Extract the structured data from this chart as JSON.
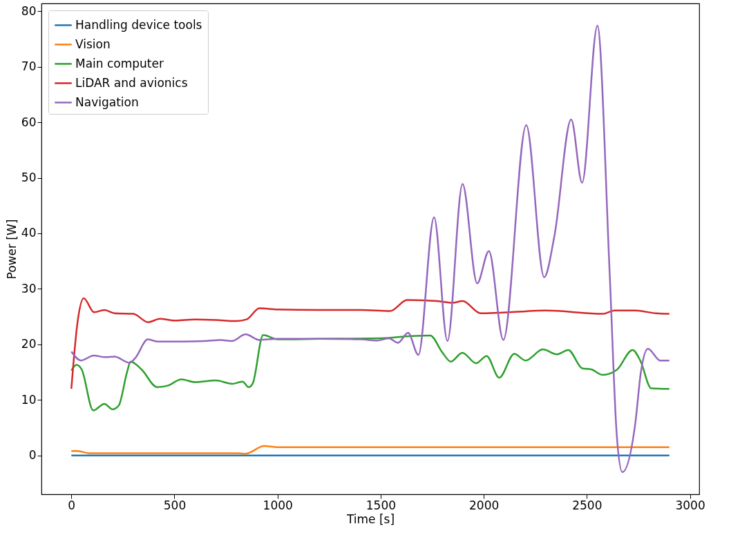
{
  "chart_data": {
    "type": "line",
    "xlabel": "Time [s]",
    "ylabel": "Power [W]",
    "xlim": [
      -145,
      3045
    ],
    "ylim": [
      -7.0,
      81.4
    ],
    "xticks": [
      0,
      500,
      1000,
      1500,
      2000,
      2500,
      3000
    ],
    "yticks": [
      0,
      10,
      20,
      30,
      40,
      50,
      60,
      70,
      80
    ],
    "grid": false,
    "legend": "top left",
    "marker": "none",
    "line_style": "solid",
    "series": [
      {
        "name": "Handling device tools",
        "color": "#1f77b4",
        "x": [
          0,
          2900
        ],
        "values": [
          0,
          0
        ]
      },
      {
        "name": "Vision",
        "color": "#ff7f0e",
        "x": [
          0,
          30,
          87,
          400,
          811,
          845,
          935,
          992,
          1500,
          2000,
          2500,
          2900
        ],
        "values": [
          0.8,
          0.8,
          0.4,
          0.4,
          0.4,
          0.3,
          1.7,
          1.5,
          1.5,
          1.5,
          1.5,
          1.5
        ]
      },
      {
        "name": "Main computer",
        "color": "#2ca02c",
        "x": [
          0,
          25,
          50,
          106,
          160,
          200,
          230,
          270,
          287,
          340,
          416,
          470,
          533,
          600,
          700,
          780,
          830,
          860,
          880,
          930,
          1000,
          1200,
          1500,
          1650,
          1740,
          1800,
          1840,
          1896,
          1963,
          2014,
          2075,
          2148,
          2203,
          2287,
          2354,
          2410,
          2477,
          2521,
          2578,
          2645,
          2722,
          2760,
          2812,
          2900
        ],
        "values": [
          15.3,
          16.3,
          15.5,
          8.1,
          9.3,
          8.3,
          9.0,
          15.0,
          16.9,
          15.5,
          12.3,
          12.6,
          13.7,
          13.2,
          13.5,
          12.9,
          13.3,
          12.3,
          13.0,
          21.7,
          20.9,
          21.0,
          21.1,
          21.5,
          21.6,
          18.5,
          16.9,
          18.5,
          16.6,
          17.9,
          14.0,
          18.3,
          17.1,
          19.1,
          18.2,
          19.0,
          15.7,
          15.5,
          14.5,
          15.4,
          19.0,
          17.0,
          12.1,
          12.0
        ]
      },
      {
        "name": "LiDAR and avionics",
        "color": "#d62728",
        "x": [
          0,
          30,
          60,
          110,
          160,
          210,
          300,
          372,
          430,
          500,
          600,
          700,
          800,
          850,
          912,
          1000,
          1200,
          1405,
          1545,
          1629,
          1773,
          1850,
          1897,
          1985,
          2075,
          2300,
          2578,
          2634,
          2735,
          2835,
          2900
        ],
        "values": [
          12.0,
          24.0,
          28.3,
          25.8,
          26.2,
          25.6,
          25.5,
          24.0,
          24.6,
          24.3,
          24.5,
          24.4,
          24.2,
          24.5,
          26.5,
          26.3,
          26.2,
          26.2,
          26.0,
          28.0,
          27.8,
          27.5,
          27.8,
          25.6,
          25.7,
          26.1,
          25.5,
          26.1,
          26.1,
          25.6,
          25.5
        ]
      },
      {
        "name": "Navigation",
        "color": "#9467bd",
        "x": [
          0,
          47,
          108,
          164,
          209,
          282,
          309,
          371,
          421,
          533,
          645,
          724,
          778,
          845,
          912,
          1000,
          1200,
          1405,
          1483,
          1539,
          1584,
          1633,
          1683,
          1759,
          1824,
          1897,
          1968,
          2025,
          2095,
          2206,
          2293,
          2343,
          2424,
          2477,
          2551,
          2611,
          2645,
          2672,
          2735,
          2762,
          2796,
          2856,
          2900
        ],
        "values": [
          18.7,
          17.1,
          18.0,
          17.7,
          17.8,
          16.7,
          17.5,
          20.9,
          20.5,
          20.5,
          20.6,
          20.8,
          20.6,
          21.8,
          20.8,
          21.0,
          21.0,
          20.9,
          20.7,
          21.1,
          20.3,
          22.1,
          18.1,
          42.9,
          20.6,
          48.9,
          31.0,
          36.8,
          20.8,
          59.5,
          32.1,
          39.6,
          60.5,
          49.1,
          77.4,
          32.5,
          3.7,
          -3.0,
          5.8,
          15.0,
          19.2,
          17.1,
          17.1
        ]
      }
    ]
  }
}
